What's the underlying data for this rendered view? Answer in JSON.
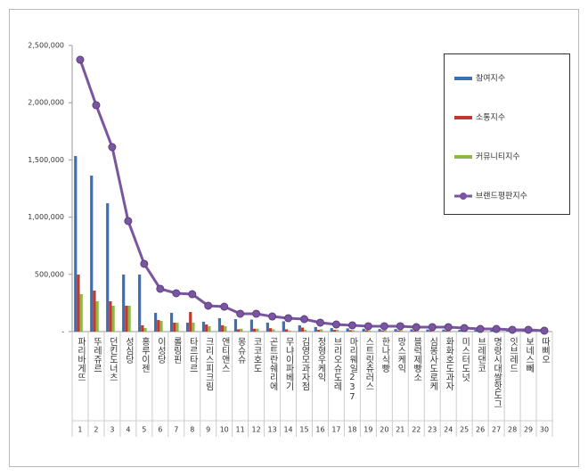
{
  "chart_data": {
    "type": "bar_line",
    "categories": [
      "파리바게뜨",
      "뚜레쥬르",
      "던킨도너츠",
      "성심당",
      "홍루이젠",
      "이성당",
      "롤링핀",
      "타르타르",
      "크리스피크림",
      "앤티앤스",
      "몽슈슈",
      "코코호도",
      "곤트란쉐리에",
      "무냐이파베기",
      "김영모과자점",
      "정형우케익",
      "브리오슈도레",
      "마리웨일237",
      "스트릿츄러스",
      "한나식빵",
      "망스케익",
      "블럭제빵소",
      "심봉사도로케",
      "화화호도과자",
      "미스터도넛",
      "브레댄코",
      "명랑시대쌀핫도그",
      "잇브레드",
      "보네스뻬",
      "따삐오"
    ],
    "ranks": [
      1,
      2,
      3,
      4,
      5,
      6,
      7,
      8,
      9,
      10,
      11,
      12,
      13,
      14,
      15,
      16,
      17,
      18,
      19,
      20,
      21,
      22,
      23,
      24,
      25,
      26,
      27,
      28,
      29,
      30
    ],
    "series": [
      {
        "name": "참여지수",
        "color": "#3b6fb6",
        "kind": "bar",
        "values": [
          1534000,
          1363000,
          1121000,
          498000,
          498000,
          164000,
          164000,
          78000,
          86000,
          117000,
          109000,
          105000,
          78000,
          90000,
          55000,
          40000,
          30000,
          28000,
          25000,
          22000,
          22000,
          20000,
          18000,
          18000,
          15000,
          14000,
          12000,
          10000,
          9000,
          8000
        ]
      },
      {
        "name": "소통지수",
        "color": "#c0392b",
        "kind": "bar",
        "values": [
          498000,
          358000,
          265000,
          226000,
          55000,
          101000,
          78000,
          171000,
          62000,
          55000,
          20000,
          25000,
          30000,
          20000,
          35000,
          15000,
          15000,
          12000,
          12000,
          10000,
          10000,
          8000,
          10000,
          8000,
          8000,
          6000,
          6000,
          5000,
          5000,
          4000
        ]
      },
      {
        "name": "커뮤니티지수",
        "color": "#8db843",
        "kind": "bar",
        "values": [
          327000,
          265000,
          226000,
          226000,
          31000,
          93000,
          78000,
          78000,
          47000,
          47000,
          25000,
          25000,
          20000,
          10000,
          15000,
          20000,
          15000,
          12000,
          10000,
          12000,
          12000,
          10000,
          10000,
          10000,
          10000,
          8000,
          8000,
          6000,
          6000,
          5000
        ]
      },
      {
        "name": "브랜드평판지수",
        "color": "#7a55a0",
        "kind": "line",
        "values": [
          2375000,
          1978000,
          1612000,
          966000,
          592000,
          374000,
          335000,
          327000,
          226000,
          218000,
          156000,
          156000,
          132000,
          117000,
          109000,
          78000,
          62000,
          55000,
          47000,
          47000,
          47000,
          39000,
          39000,
          39000,
          31000,
          23000,
          23000,
          16000,
          16000,
          8000
        ]
      }
    ],
    "ylim": [
      0,
      2500000
    ],
    "yticks": [
      {
        "value": 0,
        "label": "-"
      },
      {
        "value": 500000,
        "label": "500,000"
      },
      {
        "value": 1000000,
        "label": "1,000,000"
      },
      {
        "value": 1500000,
        "label": "1,500,000"
      },
      {
        "value": 2000000,
        "label": "2,000,000"
      },
      {
        "value": 2500000,
        "label": "2,500,000"
      }
    ],
    "legend": "top-right"
  }
}
